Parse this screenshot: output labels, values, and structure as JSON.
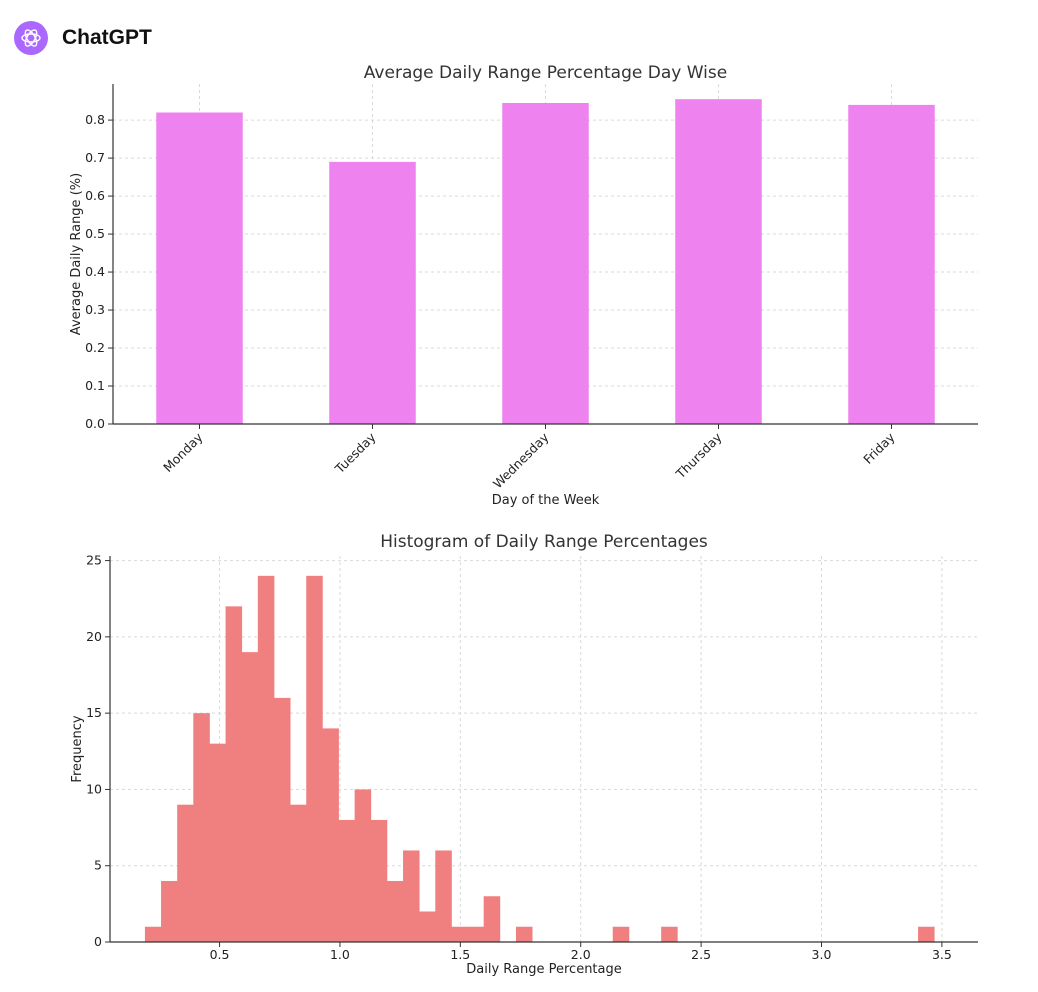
{
  "app": {
    "name": "ChatGPT",
    "logo_icon": "openai-logo-icon",
    "logo_color": "#ab68ff"
  },
  "chart_data": [
    {
      "type": "bar",
      "title": "Average Daily Range Percentage Day Wise",
      "xlabel": "Day of the Week",
      "ylabel": "Average Daily Range (%)",
      "categories": [
        "Monday",
        "Tuesday",
        "Wednesday",
        "Thursday",
        "Friday"
      ],
      "values": [
        0.82,
        0.69,
        0.845,
        0.855,
        0.84
      ],
      "ylim": [
        0,
        0.895
      ],
      "yticks": [
        0.0,
        0.1,
        0.2,
        0.3,
        0.4,
        0.5,
        0.6,
        0.7,
        0.8
      ],
      "grid": true,
      "color": "#ee82ee"
    },
    {
      "type": "bar",
      "histogram": true,
      "title": "Histogram of Daily Range Percentages",
      "xlabel": "Daily Range Percentage",
      "ylabel": "Frequency",
      "bins": [
        {
          "x0": 0.19,
          "x1": 0.257,
          "count": 1
        },
        {
          "x0": 0.257,
          "x1": 0.324,
          "count": 4
        },
        {
          "x0": 0.324,
          "x1": 0.391,
          "count": 9
        },
        {
          "x0": 0.391,
          "x1": 0.458,
          "count": 15
        },
        {
          "x0": 0.458,
          "x1": 0.525,
          "count": 13
        },
        {
          "x0": 0.525,
          "x1": 0.592,
          "count": 22
        },
        {
          "x0": 0.592,
          "x1": 0.659,
          "count": 19
        },
        {
          "x0": 0.659,
          "x1": 0.726,
          "count": 24
        },
        {
          "x0": 0.726,
          "x1": 0.793,
          "count": 16
        },
        {
          "x0": 0.793,
          "x1": 0.86,
          "count": 9
        },
        {
          "x0": 0.86,
          "x1": 0.927,
          "count": 24
        },
        {
          "x0": 0.927,
          "x1": 0.994,
          "count": 14
        },
        {
          "x0": 0.994,
          "x1": 1.061,
          "count": 8
        },
        {
          "x0": 1.061,
          "x1": 1.128,
          "count": 10
        },
        {
          "x0": 1.128,
          "x1": 1.195,
          "count": 8
        },
        {
          "x0": 1.195,
          "x1": 1.262,
          "count": 4
        },
        {
          "x0": 1.262,
          "x1": 1.329,
          "count": 6
        },
        {
          "x0": 1.329,
          "x1": 1.396,
          "count": 2
        },
        {
          "x0": 1.396,
          "x1": 1.463,
          "count": 6
        },
        {
          "x0": 1.463,
          "x1": 1.53,
          "count": 1
        },
        {
          "x0": 1.53,
          "x1": 1.597,
          "count": 1
        },
        {
          "x0": 1.597,
          "x1": 1.664,
          "count": 3
        },
        {
          "x0": 1.731,
          "x1": 1.798,
          "count": 1
        },
        {
          "x0": 2.133,
          "x1": 2.2,
          "count": 1
        },
        {
          "x0": 2.334,
          "x1": 2.401,
          "count": 1
        },
        {
          "x0": 3.401,
          "x1": 3.468,
          "count": 1
        }
      ],
      "xlim": [
        0.045,
        3.65
      ],
      "ylim": [
        0,
        25.3
      ],
      "xticks": [
        "0.5",
        "1.0",
        "1.5",
        "2.0",
        "2.5",
        "3.0",
        "3.5"
      ],
      "yticks": [
        0,
        5,
        10,
        15,
        20,
        25
      ],
      "grid": true,
      "color": "#f08080"
    }
  ]
}
